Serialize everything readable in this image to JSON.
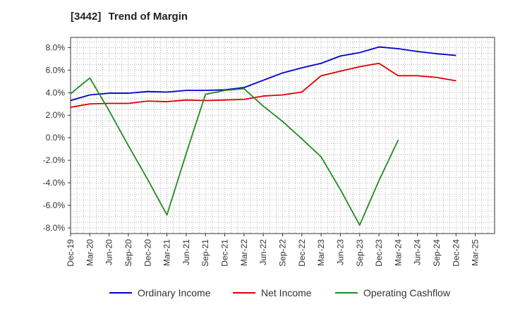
{
  "chart_data": {
    "type": "line",
    "title_code": "[3442]",
    "title": "Trend of Margin",
    "xlabel": "",
    "ylabel": "",
    "x_ticks": [
      "Dec-19",
      "Mar-20",
      "Jun-20",
      "Sep-20",
      "Dec-20",
      "Mar-21",
      "Jun-21",
      "Sep-21",
      "Dec-21",
      "Mar-22",
      "Jun-22",
      "Sep-22",
      "Dec-22",
      "Mar-23",
      "Jun-23",
      "Sep-23",
      "Dec-23",
      "Mar-24",
      "Jun-24",
      "Sep-24",
      "Dec-24",
      "Mar-25"
    ],
    "y_ticks": [
      "8.0%",
      "6.0%",
      "4.0%",
      "2.0%",
      "0.0%",
      "-2.0%",
      "-4.0%",
      "-6.0%",
      "-8.0%"
    ],
    "y_tick_values": [
      8,
      6,
      4,
      2,
      0,
      -2,
      -4,
      -6,
      -8
    ],
    "ylim": [
      -8.5,
      8.9
    ],
    "grid": true,
    "legend_position": "bottom",
    "series": [
      {
        "name": "Ordinary Income",
        "color": "#0000cc",
        "x": [
          "Dec-19",
          "Mar-20",
          "Jun-20",
          "Sep-20",
          "Dec-20",
          "Mar-21",
          "Jun-21",
          "Sep-21",
          "Dec-21",
          "Mar-22",
          "Jun-22",
          "Sep-22",
          "Dec-22",
          "Mar-23",
          "Jun-23",
          "Sep-23",
          "Dec-23",
          "Mar-24",
          "Jun-24",
          "Sep-24",
          "Dec-24"
        ],
        "values": [
          3.3,
          3.8,
          3.95,
          3.95,
          4.1,
          4.05,
          4.2,
          4.2,
          4.25,
          4.45,
          5.1,
          5.75,
          6.2,
          6.6,
          7.25,
          7.55,
          8.05,
          7.9,
          7.65,
          7.45,
          7.3
        ]
      },
      {
        "name": "Net Income",
        "color": "#dd0000",
        "x": [
          "Dec-19",
          "Mar-20",
          "Jun-20",
          "Sep-20",
          "Dec-20",
          "Mar-21",
          "Jun-21",
          "Sep-21",
          "Dec-21",
          "Mar-22",
          "Jun-22",
          "Sep-22",
          "Dec-22",
          "Mar-23",
          "Jun-23",
          "Sep-23",
          "Dec-23",
          "Mar-24",
          "Jun-24",
          "Sep-24",
          "Dec-24"
        ],
        "values": [
          2.7,
          3.0,
          3.05,
          3.05,
          3.25,
          3.2,
          3.35,
          3.3,
          3.35,
          3.4,
          3.7,
          3.8,
          4.05,
          5.5,
          5.9,
          6.3,
          6.6,
          5.5,
          5.5,
          5.35,
          5.05
        ]
      },
      {
        "name": "Operating Cashflow",
        "color": "#228b22",
        "x": [
          "Dec-19",
          "Mar-20",
          "Jun-20",
          "Sep-20",
          "Dec-20",
          "Mar-21",
          "Jun-21",
          "Sep-21",
          "Dec-21",
          "Mar-22",
          "Jun-22",
          "Sep-22",
          "Dec-22",
          "Mar-23",
          "Jun-23",
          "Sep-23",
          "Dec-23",
          "Mar-24"
        ],
        "values": [
          3.9,
          5.3,
          2.4,
          -0.7,
          -3.7,
          -6.85,
          -1.4,
          3.85,
          4.2,
          4.35,
          2.8,
          1.45,
          -0.1,
          -1.7,
          -4.6,
          -7.75,
          -3.8,
          -0.2
        ]
      }
    ]
  }
}
